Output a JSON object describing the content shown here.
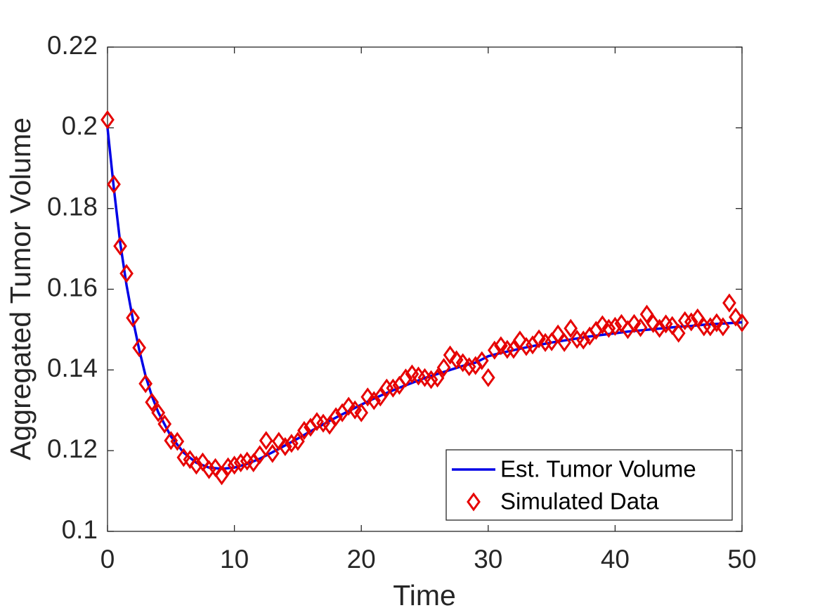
{
  "chart_data": {
    "type": "line",
    "xlabel": "Time",
    "ylabel": "Aggregated Tumor Volume",
    "xlim": [
      0,
      50
    ],
    "ylim": [
      0.1,
      0.22
    ],
    "xticks": [
      0,
      10,
      20,
      30,
      40,
      50
    ],
    "yticks": [
      0.1,
      0.12,
      0.14,
      0.16,
      0.18,
      0.2,
      0.22
    ],
    "legend": "lower right",
    "series": [
      {
        "name": "Est. Tumor Volume",
        "color": "#0000e6",
        "style": "line",
        "x": [
          0,
          0.5,
          1,
          1.5,
          2,
          2.5,
          3,
          3.5,
          4,
          5,
          6,
          7,
          8,
          9,
          10,
          11,
          12,
          13,
          14,
          15,
          16,
          17,
          18,
          19,
          20,
          21,
          22,
          23,
          24,
          25,
          26,
          27,
          28,
          29,
          30,
          31,
          32,
          33,
          34,
          35,
          36,
          37,
          38,
          39,
          40,
          41,
          42,
          43,
          44,
          45,
          46,
          47,
          48,
          49,
          50
        ],
        "values": [
          0.2,
          0.185,
          0.1715,
          0.161,
          0.1525,
          0.145,
          0.1385,
          0.1335,
          0.1295,
          0.1235,
          0.1195,
          0.117,
          0.1158,
          0.1155,
          0.1158,
          0.1167,
          0.118,
          0.1196,
          0.1213,
          0.123,
          0.1248,
          0.1265,
          0.1282,
          0.1298,
          0.1314,
          0.1329,
          0.1343,
          0.1356,
          0.1368,
          0.138,
          0.139,
          0.14,
          0.141,
          0.1418,
          0.1434,
          0.1442,
          0.1449,
          0.1456,
          0.1462,
          0.1468,
          0.1473,
          0.1478,
          0.1483,
          0.1487,
          0.1491,
          0.1495,
          0.1498,
          0.1501,
          0.1504,
          0.1507,
          0.1509,
          0.1512,
          0.1514,
          0.1516,
          0.1518
        ]
      },
      {
        "name": "Simulated Data",
        "color": "#e60000",
        "style": "marker",
        "x": [
          0,
          0.5,
          1,
          1.5,
          2,
          2.5,
          3,
          3.5,
          4,
          4.5,
          5,
          5.5,
          6,
          6.5,
          7,
          7.5,
          8,
          8.5,
          9,
          9.5,
          10,
          10.5,
          11,
          11.5,
          12,
          12.5,
          13,
          13.5,
          14,
          14.5,
          15,
          15.5,
          16,
          16.5,
          17,
          17.5,
          18,
          18.5,
          19,
          19.5,
          20,
          20.5,
          21,
          21.5,
          22,
          22.5,
          23,
          23.5,
          24,
          24.5,
          25,
          25.5,
          26,
          26.5,
          27,
          27.5,
          28,
          28.5,
          29,
          29.5,
          30,
          30.5,
          31,
          31.5,
          32,
          32.5,
          33,
          33.5,
          34,
          34.5,
          35,
          35.5,
          36,
          36.5,
          37,
          37.5,
          38,
          38.5,
          39,
          39.5,
          40,
          40.5,
          41,
          41.5,
          42,
          42.5,
          43,
          43.5,
          44,
          44.5,
          45,
          45.5,
          46,
          46.5,
          47,
          47.5,
          48,
          48.5,
          49,
          49.5,
          50
        ],
        "values": [
          0.202,
          0.186,
          0.1707,
          0.1639,
          0.1529,
          0.1455,
          0.1366,
          0.132,
          0.1294,
          0.1266,
          0.1225,
          0.1223,
          0.1183,
          0.1178,
          0.1164,
          0.1172,
          0.1153,
          0.1158,
          0.1138,
          0.116,
          0.1164,
          0.117,
          0.1174,
          0.117,
          0.119,
          0.1225,
          0.1193,
          0.1223,
          0.121,
          0.1218,
          0.1223,
          0.125,
          0.1258,
          0.1272,
          0.1268,
          0.1263,
          0.1284,
          0.1294,
          0.131,
          0.1301,
          0.1294,
          0.1333,
          0.1324,
          0.1333,
          0.1355,
          0.1355,
          0.1362,
          0.138,
          0.139,
          0.1385,
          0.1381,
          0.1376,
          0.138,
          0.1406,
          0.1437,
          0.1425,
          0.1418,
          0.1408,
          0.1411,
          0.1423,
          0.1381,
          0.1449,
          0.146,
          0.1451,
          0.1451,
          0.1474,
          0.1458,
          0.1462,
          0.1477,
          0.1468,
          0.147,
          0.1489,
          0.1468,
          0.1503,
          0.1476,
          0.1474,
          0.1484,
          0.1498,
          0.1512,
          0.1503,
          0.1508,
          0.1515,
          0.15,
          0.1515,
          0.1505,
          0.1538,
          0.1515,
          0.1503,
          0.1514,
          0.151,
          0.1491,
          0.1522,
          0.1519,
          0.1529,
          0.1507,
          0.1507,
          0.1517,
          0.1507,
          0.1566,
          0.1531,
          0.1517
        ]
      }
    ]
  }
}
